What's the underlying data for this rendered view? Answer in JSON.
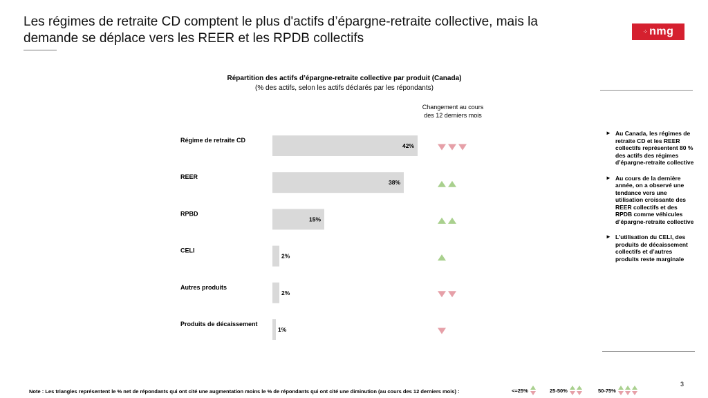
{
  "slide": {
    "title": "Les régimes de retraite CD comptent le plus d'actifs d’épargne-retraite collective, mais la demande se déplace vers les REER et les RPDB collectifs",
    "logo_text": "nmg",
    "page_number": "3"
  },
  "chart_data": {
    "type": "bar",
    "orientation": "horizontal",
    "title": "Répartition des actifs d’épargne-retraite collective par produit (Canada)",
    "subtitle": "(% des actifs, selon les actifs déclarés par les répondants)",
    "categories": [
      "Régime de retraite CD",
      "REER",
      "RPBD",
      "CELI",
      "Autres produits",
      "Produits de décaissement"
    ],
    "values": [
      42,
      38,
      15,
      2,
      2,
      1
    ],
    "value_labels": [
      "42%",
      "38%",
      "15%",
      "2%",
      "2%",
      "1%"
    ],
    "xlim": [
      0,
      100
    ],
    "bar_color": "#d9d9d9",
    "change_header": "Changement au cours des 12 derniers mois",
    "change": [
      {
        "direction": "down",
        "count": 3
      },
      {
        "direction": "up",
        "count": 2
      },
      {
        "direction": "up",
        "count": 2
      },
      {
        "direction": "up",
        "count": 1
      },
      {
        "direction": "down",
        "count": 2
      },
      {
        "direction": "down",
        "count": 1
      }
    ],
    "up_color": "#a9d08e",
    "down_color": "#e6a0a8"
  },
  "bullets": [
    "Au Canada, les régimes de retraite CD et les REER collectifs représentent 80 % des actifs des régimes d’épargne-retraite collective",
    "Au cours de la dernière année, on a observé une tendance vers une utilisation croissante des REER collectifs et des RPDB comme véhicules d’épargne-retraite collective",
    "L'utilisation du CELI, des produits de décaissement collectifs et d’autres produits reste marginale"
  ],
  "footer": {
    "note": "Note : Les triangles représentent le % net de répondants qui ont cité une augmentation moins le % de répondants qui ont cité une diminution (au cours des 12 derniers mois) :",
    "legend": [
      {
        "label": "<=25%",
        "count": 1
      },
      {
        "label": "25-50%",
        "count": 2
      },
      {
        "label": "50-75%",
        "count": 3
      }
    ]
  }
}
